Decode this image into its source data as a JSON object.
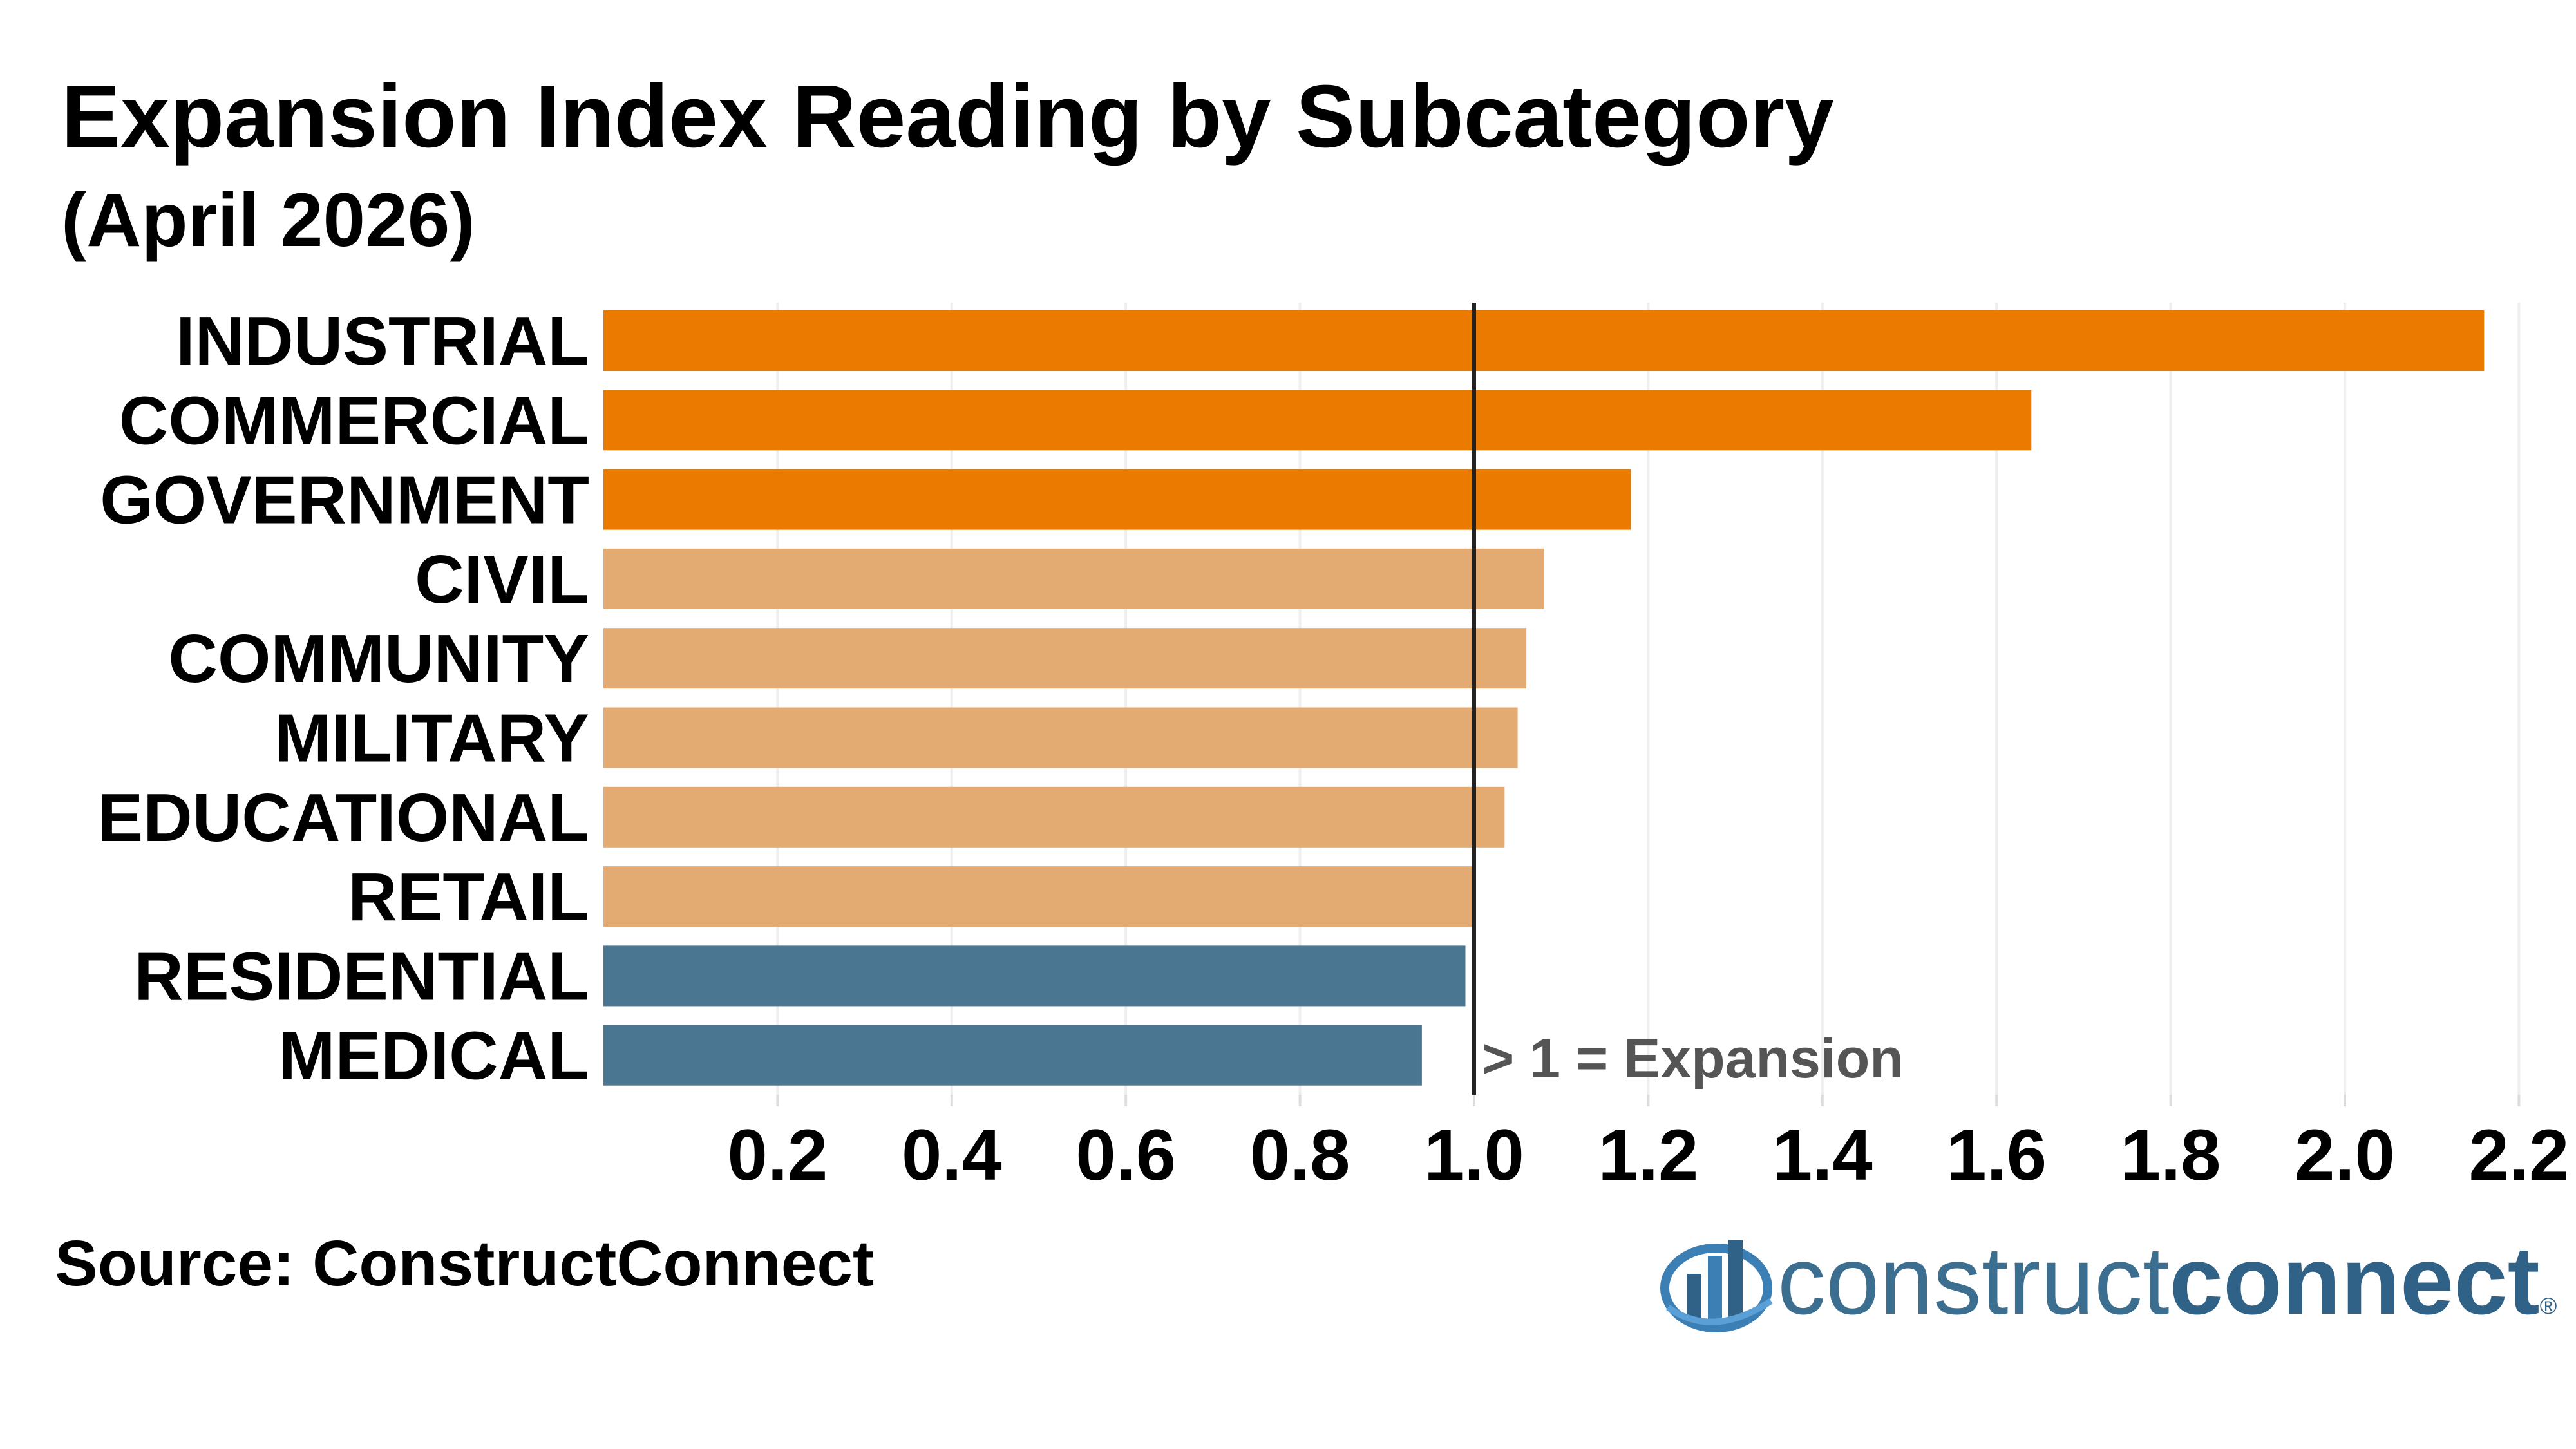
{
  "title": "Expansion Index Reading by Subcategory",
  "subtitle": "(April 2026)",
  "source": "Source: ConstructConnect",
  "logo": {
    "part1": "construct",
    "part2": "connect",
    "mark": "®",
    "icon": "bar-chart-globe-logo-icon"
  },
  "colors": {
    "above_threshold_strong": "#EB7A00",
    "above_threshold_light": "#E3AA72",
    "below_threshold": "#4A7691",
    "reference_line": "#222222",
    "grid": "#EEEEEE",
    "annotation": "#555555"
  },
  "chart_data": {
    "type": "bar",
    "orientation": "horizontal",
    "title": "Expansion Index Reading by Subcategory",
    "subtitle": "(April 2026)",
    "categories": [
      "INDUSTRIAL",
      "COMMERCIAL",
      "GOVERNMENT",
      "CIVIL",
      "COMMUNITY",
      "MILITARY",
      "EDUCATIONAL",
      "RETAIL",
      "RESIDENTIAL",
      "MEDICAL"
    ],
    "values": [
      2.16,
      1.64,
      1.18,
      1.08,
      1.06,
      1.05,
      1.035,
      1.0,
      0.99,
      0.94
    ],
    "bar_colors": [
      "#EB7A00",
      "#EB7A00",
      "#EB7A00",
      "#E3AA72",
      "#E3AA72",
      "#E3AA72",
      "#E3AA72",
      "#E3AA72",
      "#4A7691",
      "#4A7691"
    ],
    "xlim": [
      0,
      2.2
    ],
    "xticks": [
      0.2,
      0.4,
      0.6,
      0.8,
      1.0,
      1.2,
      1.4,
      1.6,
      1.8,
      2.0,
      2.2
    ],
    "xtick_labels": [
      "0.2",
      "0.4",
      "0.6",
      "0.8",
      "1.0",
      "1.2",
      "1.4",
      "1.6",
      "1.8",
      "2.0",
      "2.2"
    ],
    "reference_line": 1.0,
    "annotation": "> 1 = Expansion",
    "xlabel": "",
    "ylabel": "",
    "grid": true,
    "legend": "none"
  }
}
